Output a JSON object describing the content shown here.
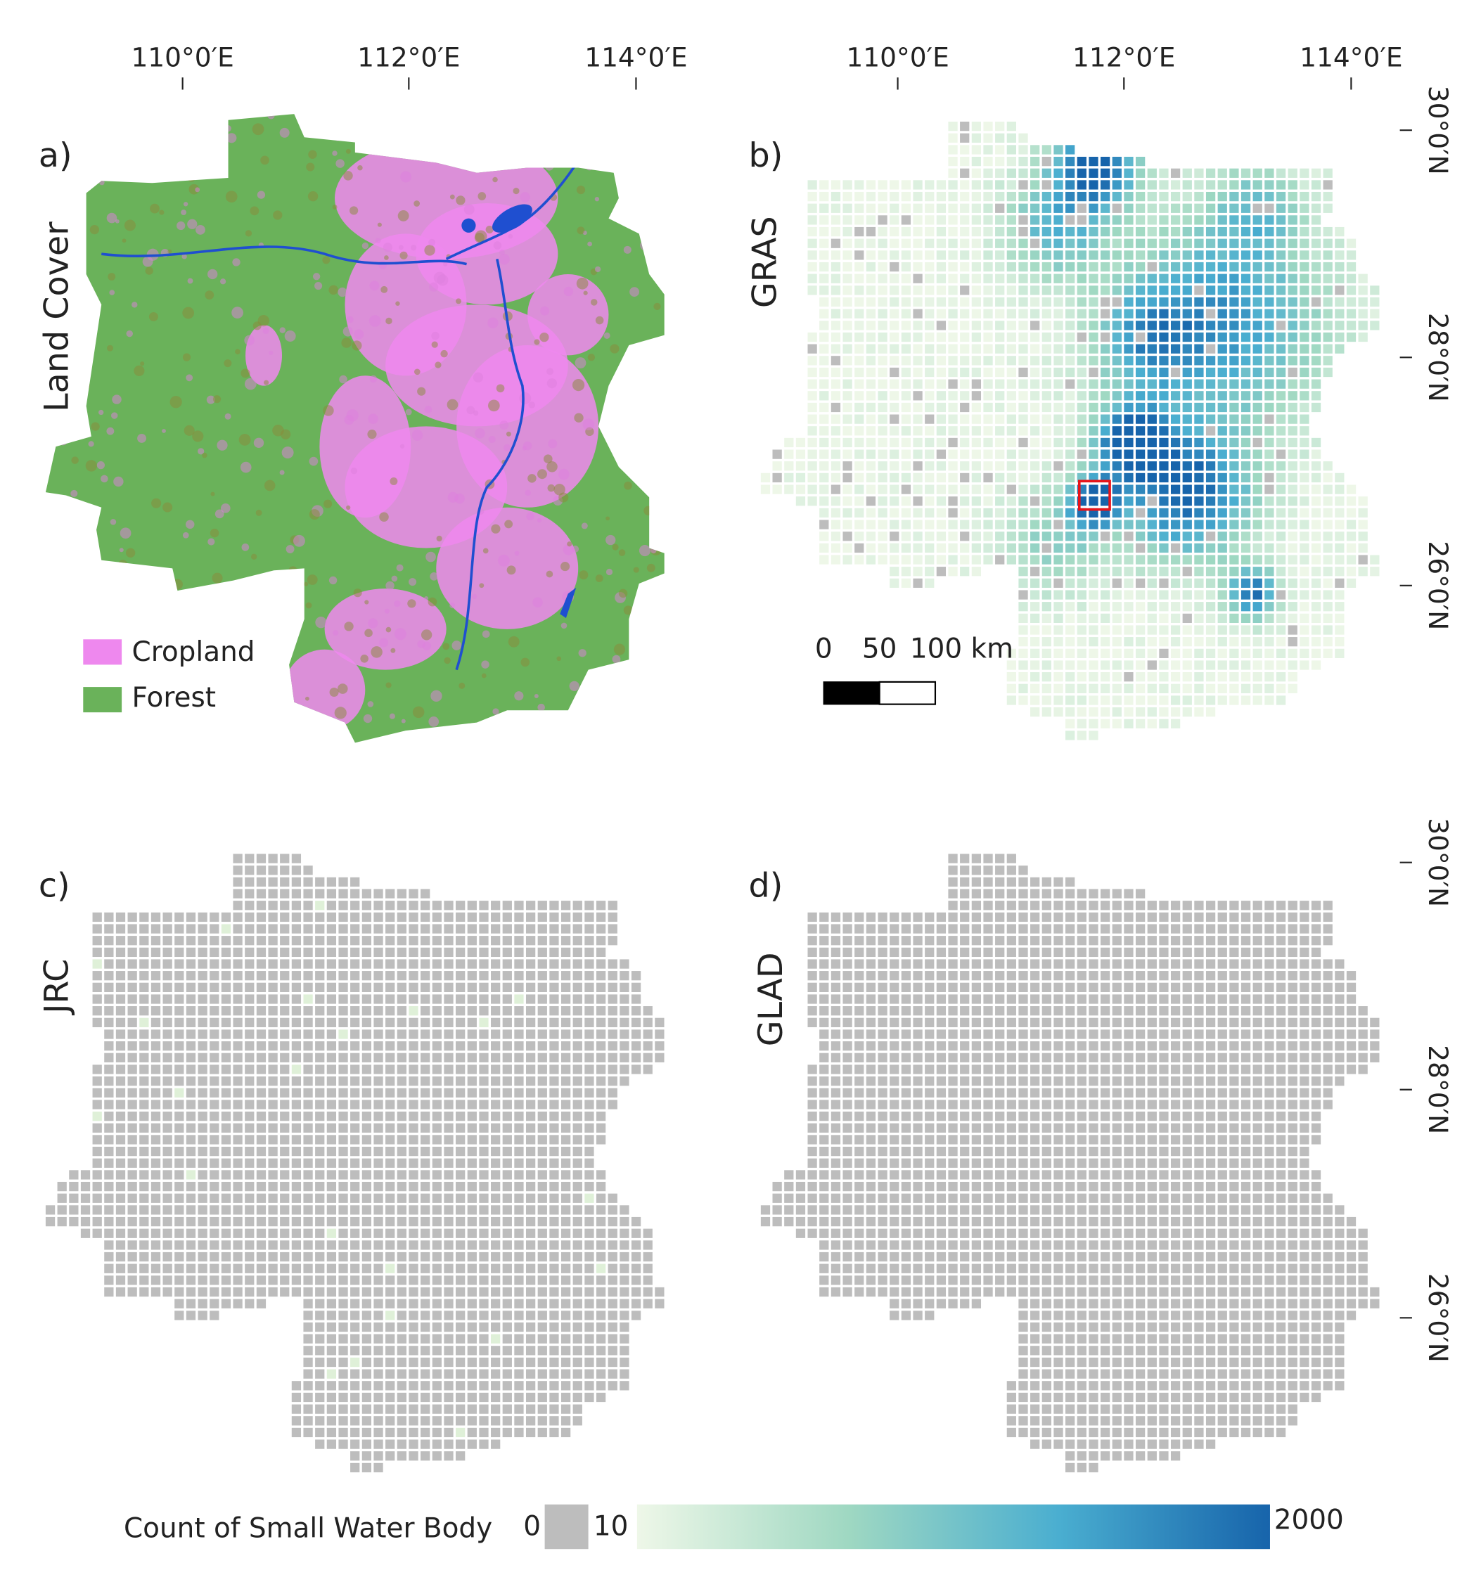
{
  "panels": [
    {
      "letter": "a)",
      "label": "Land Cover"
    },
    {
      "letter": "b)",
      "label": "GRAS"
    },
    {
      "letter": "c)",
      "label": "JRC"
    },
    {
      "letter": "d)",
      "label": "GLAD"
    }
  ],
  "longitude_labels": [
    "110°0′E",
    "112°0′E",
    "114°0′E"
  ],
  "latitude_labels": [
    "30°0′N",
    "28°0′N",
    "26°0′N"
  ],
  "land_cover_legend": [
    {
      "name": "Cropland",
      "color": "#ee88ee"
    },
    {
      "name": "Forest",
      "color": "#6ab25a"
    }
  ],
  "scale_bar": [
    "0",
    "50",
    "100 km"
  ],
  "colorbar": {
    "title": "Count of Small Water Body",
    "min_label": "0",
    "gray_label": "10",
    "max_label": "2000",
    "gray": "#bdbdbd",
    "colors": [
      "#eef7e8",
      "#9fd8c2",
      "#4aaed0",
      "#1764ab"
    ]
  }
}
